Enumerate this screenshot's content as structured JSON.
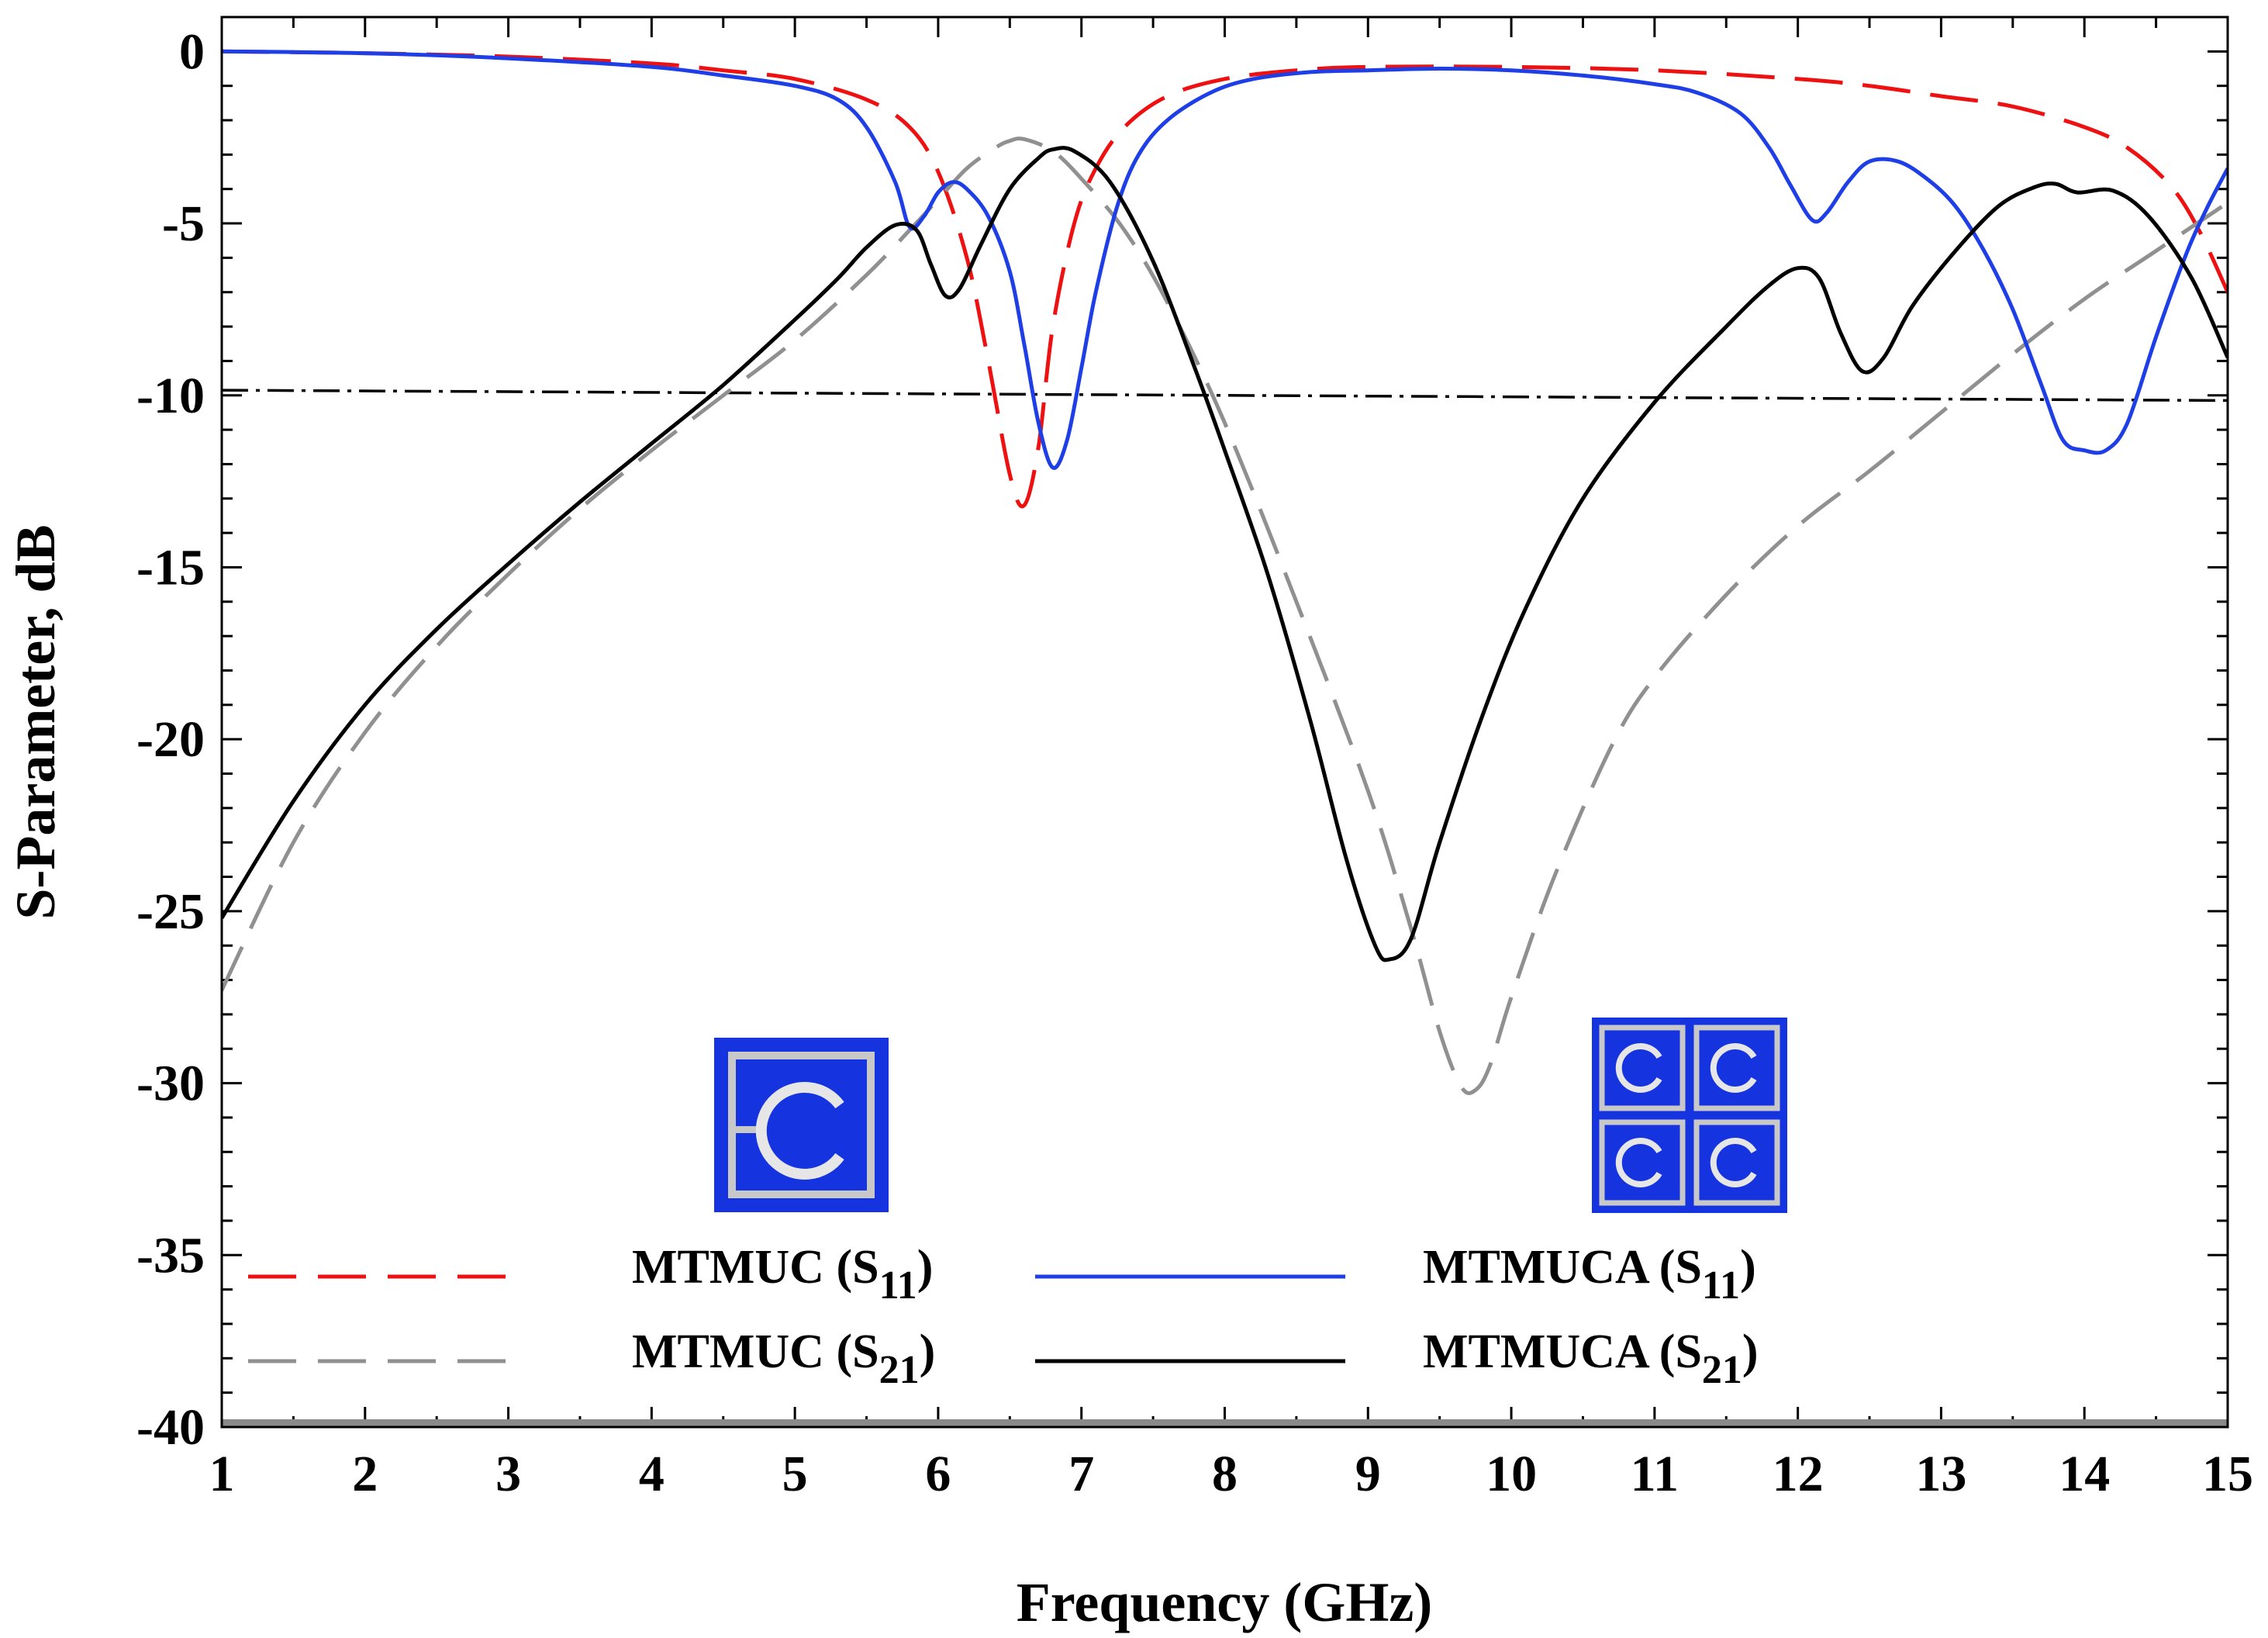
{
  "chart_data": {
    "type": "line",
    "title": "",
    "xlabel": "Frequency (GHz)",
    "ylabel": "S-Parameter, dB",
    "xlim": [
      1,
      15
    ],
    "ylim": [
      -40,
      1
    ],
    "xticks": [
      "1",
      "2",
      "3",
      "4",
      "5",
      "6",
      "7",
      "8",
      "9",
      "10",
      "11",
      "12",
      "13",
      "14",
      "15"
    ],
    "yticks": [
      "0",
      "-5",
      "-10",
      "-15",
      "-20",
      "-25",
      "-30",
      "-35",
      "-40"
    ],
    "reference_line": {
      "name": "-10 dB threshold",
      "y_start": -9.85,
      "y_end": -10.15,
      "style": "dash-dot",
      "color": "#000000"
    },
    "series": [
      {
        "name": "MTMUC (S11)",
        "legend_main": "MTMUC (S",
        "legend_sub": "11",
        "legend_close": ")",
        "color": "#ee1111",
        "style": "dashed",
        "points": [
          [
            1,
            0
          ],
          [
            2,
            -0.05
          ],
          [
            3,
            -0.15
          ],
          [
            4,
            -0.35
          ],
          [
            4.5,
            -0.55
          ],
          [
            5,
            -0.8
          ],
          [
            5.5,
            -1.4
          ],
          [
            5.8,
            -2.2
          ],
          [
            6.0,
            -3.5
          ],
          [
            6.2,
            -6
          ],
          [
            6.35,
            -9
          ],
          [
            6.5,
            -12.3
          ],
          [
            6.6,
            -13.2
          ],
          [
            6.7,
            -11.5
          ],
          [
            6.8,
            -8
          ],
          [
            6.95,
            -5
          ],
          [
            7.1,
            -3.4
          ],
          [
            7.3,
            -2.2
          ],
          [
            7.6,
            -1.3
          ],
          [
            8,
            -0.8
          ],
          [
            8.5,
            -0.55
          ],
          [
            9,
            -0.45
          ],
          [
            10,
            -0.45
          ],
          [
            11,
            -0.55
          ],
          [
            12,
            -0.8
          ],
          [
            12.5,
            -1
          ],
          [
            13,
            -1.3
          ],
          [
            13.5,
            -1.6
          ],
          [
            14,
            -2.2
          ],
          [
            14.3,
            -2.8
          ],
          [
            14.6,
            -3.9
          ],
          [
            14.8,
            -5.2
          ],
          [
            15,
            -7
          ]
        ]
      },
      {
        "name": "MTMUC (S21)",
        "legend_main": "MTMUC (S",
        "legend_sub": "21",
        "legend_close": ")",
        "color": "#909090",
        "style": "dashed",
        "points": [
          [
            1,
            -27.3
          ],
          [
            1.5,
            -23
          ],
          [
            2,
            -19.8
          ],
          [
            2.5,
            -17.3
          ],
          [
            3,
            -15.2
          ],
          [
            3.5,
            -13.3
          ],
          [
            4,
            -11.6
          ],
          [
            4.5,
            -10
          ],
          [
            5,
            -8.4
          ],
          [
            5.5,
            -6.5
          ],
          [
            5.8,
            -5.2
          ],
          [
            6,
            -4.3
          ],
          [
            6.2,
            -3.4
          ],
          [
            6.4,
            -2.8
          ],
          [
            6.5,
            -2.6
          ],
          [
            6.6,
            -2.55
          ],
          [
            6.8,
            -2.9
          ],
          [
            7,
            -3.7
          ],
          [
            7.3,
            -5.2
          ],
          [
            7.6,
            -7.3
          ],
          [
            8,
            -10.8
          ],
          [
            8.5,
            -16
          ],
          [
            9,
            -21.5
          ],
          [
            9.3,
            -25.5
          ],
          [
            9.5,
            -28.5
          ],
          [
            9.65,
            -30.1
          ],
          [
            9.75,
            -30.2
          ],
          [
            9.85,
            -29.5
          ],
          [
            10,
            -27.5
          ],
          [
            10.3,
            -24
          ],
          [
            10.7,
            -20.2
          ],
          [
            11,
            -18.2
          ],
          [
            11.5,
            -15.8
          ],
          [
            12,
            -13.8
          ],
          [
            12.5,
            -12.2
          ],
          [
            13,
            -10.5
          ],
          [
            13.5,
            -8.8
          ],
          [
            14,
            -7.2
          ],
          [
            14.5,
            -5.8
          ],
          [
            15,
            -4.4
          ]
        ]
      },
      {
        "name": "MTMUCA (S11)",
        "legend_main": "MTMUCA (S",
        "legend_sub": "11",
        "legend_close": ")",
        "color": "#1f3fe6",
        "style": "solid",
        "points": [
          [
            1,
            0
          ],
          [
            2,
            -0.05
          ],
          [
            3,
            -0.2
          ],
          [
            4,
            -0.45
          ],
          [
            4.5,
            -0.7
          ],
          [
            5,
            -1
          ],
          [
            5.3,
            -1.4
          ],
          [
            5.5,
            -2.2
          ],
          [
            5.7,
            -3.8
          ],
          [
            5.8,
            -5.1
          ],
          [
            5.9,
            -4.8
          ],
          [
            6,
            -4.1
          ],
          [
            6.1,
            -3.8
          ],
          [
            6.2,
            -4
          ],
          [
            6.35,
            -4.8
          ],
          [
            6.5,
            -6.4
          ],
          [
            6.6,
            -8.5
          ],
          [
            6.7,
            -10.8
          ],
          [
            6.8,
            -12.1
          ],
          [
            6.9,
            -11.3
          ],
          [
            7,
            -9.2
          ],
          [
            7.1,
            -7
          ],
          [
            7.25,
            -4.5
          ],
          [
            7.4,
            -3
          ],
          [
            7.6,
            -2
          ],
          [
            7.9,
            -1.2
          ],
          [
            8.2,
            -0.8
          ],
          [
            8.6,
            -0.6
          ],
          [
            9,
            -0.55
          ],
          [
            9.5,
            -0.5
          ],
          [
            10,
            -0.55
          ],
          [
            10.5,
            -0.7
          ],
          [
            11,
            -0.95
          ],
          [
            11.3,
            -1.2
          ],
          [
            11.6,
            -1.8
          ],
          [
            11.8,
            -2.8
          ],
          [
            11.95,
            -3.9
          ],
          [
            12.1,
            -4.9
          ],
          [
            12.2,
            -4.7
          ],
          [
            12.35,
            -3.8
          ],
          [
            12.5,
            -3.2
          ],
          [
            12.7,
            -3.2
          ],
          [
            12.9,
            -3.7
          ],
          [
            13.1,
            -4.5
          ],
          [
            13.3,
            -5.8
          ],
          [
            13.5,
            -7.5
          ],
          [
            13.7,
            -9.7
          ],
          [
            13.85,
            -11.3
          ],
          [
            14,
            -11.6
          ],
          [
            14.15,
            -11.6
          ],
          [
            14.3,
            -10.8
          ],
          [
            14.5,
            -8.3
          ],
          [
            14.7,
            -6
          ],
          [
            14.85,
            -4.6
          ],
          [
            15,
            -3.4
          ]
        ]
      },
      {
        "name": "MTMUCA (S21)",
        "legend_main": "MTMUCA  (S",
        "legend_sub": "21",
        "legend_close": ")",
        "color": "#000000",
        "style": "solid",
        "points": [
          [
            1,
            -25.2
          ],
          [
            1.5,
            -21.8
          ],
          [
            2,
            -19
          ],
          [
            2.5,
            -16.8
          ],
          [
            3,
            -14.9
          ],
          [
            3.5,
            -13.1
          ],
          [
            4,
            -11.4
          ],
          [
            4.5,
            -9.7
          ],
          [
            5,
            -7.8
          ],
          [
            5.3,
            -6.6
          ],
          [
            5.5,
            -5.7
          ],
          [
            5.7,
            -5.05
          ],
          [
            5.85,
            -5.2
          ],
          [
            5.95,
            -6.2
          ],
          [
            6.05,
            -7.1
          ],
          [
            6.15,
            -6.9
          ],
          [
            6.3,
            -5.6
          ],
          [
            6.5,
            -4
          ],
          [
            6.7,
            -3.1
          ],
          [
            6.8,
            -2.85
          ],
          [
            6.95,
            -2.9
          ],
          [
            7.2,
            -3.8
          ],
          [
            7.5,
            -6.1
          ],
          [
            7.8,
            -9.3
          ],
          [
            8,
            -11.6
          ],
          [
            8.3,
            -15.2
          ],
          [
            8.6,
            -19.5
          ],
          [
            8.85,
            -23.5
          ],
          [
            9.05,
            -26
          ],
          [
            9.15,
            -26.4
          ],
          [
            9.3,
            -25.8
          ],
          [
            9.5,
            -23
          ],
          [
            9.8,
            -19.3
          ],
          [
            10.1,
            -16.2
          ],
          [
            10.5,
            -13
          ],
          [
            11,
            -10.2
          ],
          [
            11.5,
            -8
          ],
          [
            11.8,
            -6.8
          ],
          [
            12,
            -6.3
          ],
          [
            12.15,
            -6.6
          ],
          [
            12.3,
            -8.2
          ],
          [
            12.45,
            -9.3
          ],
          [
            12.6,
            -8.9
          ],
          [
            12.8,
            -7.4
          ],
          [
            13.1,
            -5.8
          ],
          [
            13.4,
            -4.5
          ],
          [
            13.65,
            -3.95
          ],
          [
            13.8,
            -3.85
          ],
          [
            13.95,
            -4.1
          ],
          [
            14.2,
            -4.05
          ],
          [
            14.45,
            -4.8
          ],
          [
            14.75,
            -6.6
          ],
          [
            15,
            -8.9
          ]
        ]
      }
    ],
    "legend_position": "bottom-left, two columns",
    "insets": [
      "MTMUC unit cell (single split-ring)",
      "MTMUCA 2x2 unit cell array"
    ]
  }
}
